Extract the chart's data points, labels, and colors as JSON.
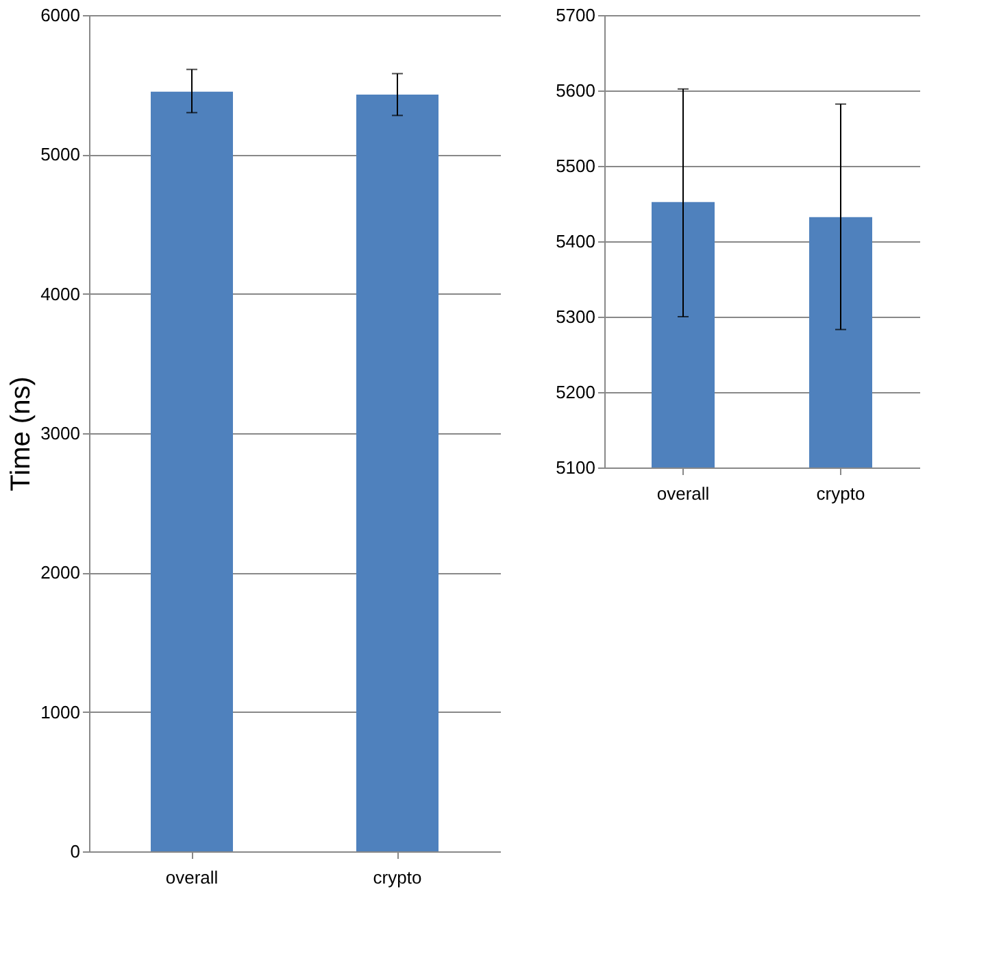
{
  "chart_data": [
    {
      "type": "bar",
      "ylabel": "Time (ns)",
      "categories": [
        "overall",
        "crypto"
      ],
      "values": [
        5450,
        5430
      ],
      "color": "#4f81bd",
      "errors": [
        [
          5300,
          5610
        ],
        [
          5280,
          5580
        ]
      ],
      "ylim": [
        0,
        6000
      ],
      "yticks": [
        0,
        1000,
        2000,
        3000,
        4000,
        5000,
        6000
      ],
      "grid": "y"
    },
    {
      "type": "bar",
      "categories": [
        "overall",
        "crypto"
      ],
      "values": [
        5452,
        5432
      ],
      "color": "#4f81bd",
      "errors": [
        [
          5300,
          5602
        ],
        [
          5283,
          5582
        ]
      ],
      "ylim": [
        5100,
        5700
      ],
      "yticks": [
        5100,
        5200,
        5300,
        5400,
        5500,
        5600,
        5700
      ],
      "grid": "y"
    }
  ]
}
